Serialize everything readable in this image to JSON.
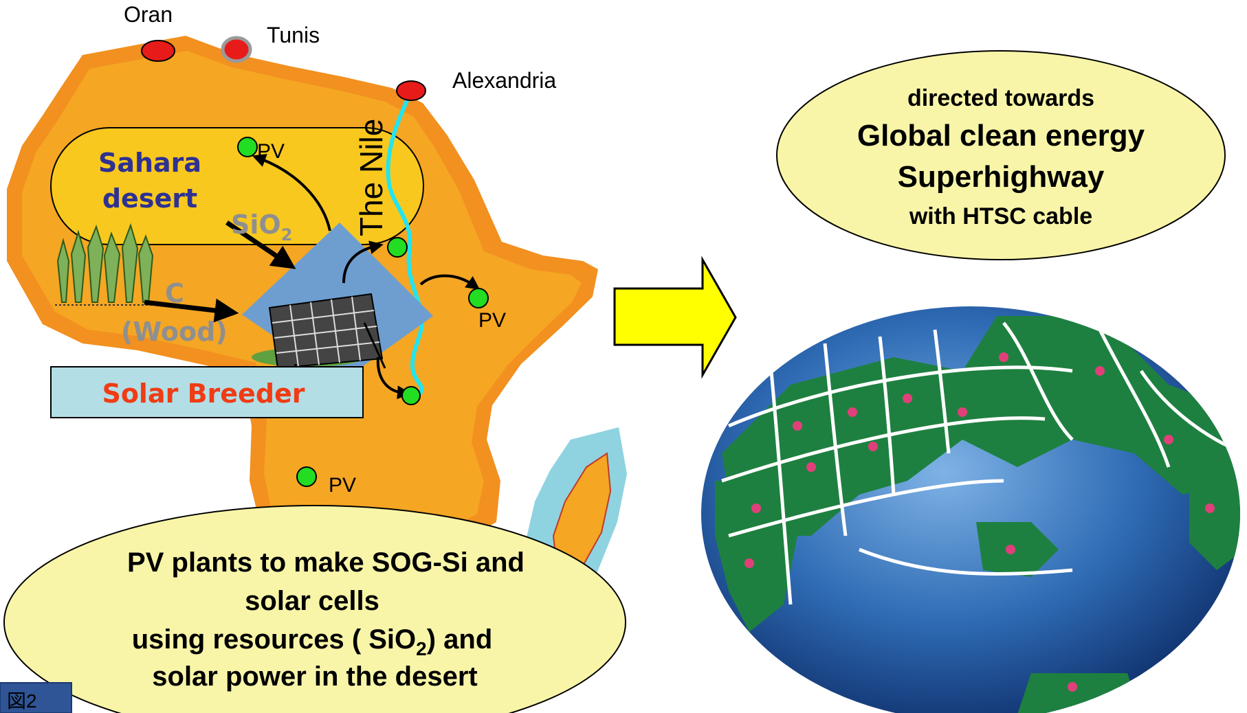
{
  "cities": [
    {
      "name": "Oran"
    },
    {
      "name": "Tunis"
    },
    {
      "name": "Alexandria"
    }
  ],
  "map_labels": {
    "sahara_line1": "Sahara",
    "sahara_line2": "desert",
    "nile": "The Nile",
    "sio2_main": "SiO",
    "sio2_sub": "2",
    "carbon": "C",
    "wood": "(Wood)",
    "solar_breeder": "Solar Breeder",
    "pv": "PV"
  },
  "bottom_bubble": {
    "line1": "PV plants to make SOG-Si and",
    "line2": "solar cells",
    "line3_pre": "using resources ( SiO",
    "line3_sub": "2",
    "line3_post": ") and",
    "line4": "solar power in the desert"
  },
  "top_bubble": {
    "line1": "directed towards",
    "line2": "Global clean energy",
    "line3": "Superhighway",
    "line4": "with HTSC cable"
  },
  "tab_label": "図2",
  "colors": {
    "africa": "#F5A623",
    "africa_border": "#F29020",
    "sahara": "#F8C81E",
    "bubble": "#F8F5A8",
    "red_text": "#F03C14",
    "blue_text": "#2E3192",
    "arrow_yellow": "#FFFF00",
    "ocean": "#2F6CB5",
    "land": "#1E8040",
    "nile": "#22E5F0",
    "pv_dot": "#22DD22",
    "city_dot": "#E81B1B"
  }
}
